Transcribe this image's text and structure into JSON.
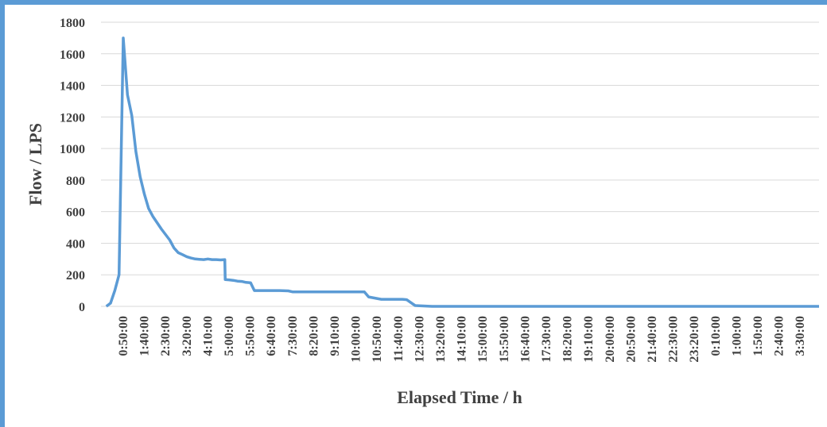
{
  "chart_data": {
    "type": "line",
    "title": "",
    "xlabel": "Elapsed Time / h",
    "ylabel": "Flow / LPS",
    "ylim": [
      0,
      1800
    ],
    "yticks": [
      0,
      200,
      400,
      600,
      800,
      1000,
      1200,
      1400,
      1600,
      1800
    ],
    "grid": "horizontal",
    "legend": "none",
    "color": "#5b9bd5",
    "xticks": [
      "0:50:00",
      "1:40:00",
      "2:30:00",
      "3:20:00",
      "4:10:00",
      "5:00:00",
      "5:50:00",
      "6:40:00",
      "7:30:00",
      "8:20:00",
      "9:10:00",
      "10:00:00",
      "10:50:00",
      "11:40:00",
      "12:30:00",
      "13:20:00",
      "14:10:00",
      "15:00:00",
      "15:50:00",
      "16:40:00",
      "17:30:00",
      "18:20:00",
      "19:10:00",
      "20:00:00",
      "20:50:00",
      "21:40:00",
      "22:30:00",
      "23:20:00",
      "0:10:00",
      "1:00:00",
      "1:50:00",
      "2:40:00",
      "3:30:00"
    ],
    "x_hours": [
      0.167,
      0.333,
      0.5,
      0.667,
      0.833,
      1.0,
      1.167,
      1.333,
      1.5,
      1.667,
      1.833,
      2.0,
      2.167,
      2.333,
      2.5,
      2.667,
      2.833,
      3.0,
      3.167,
      3.333,
      3.5,
      3.667,
      3.833,
      4.0,
      4.167,
      4.333,
      4.5,
      4.667,
      4.833,
      4.85,
      5.0,
      5.167,
      5.333,
      5.5,
      5.667,
      5.833,
      5.85,
      6.0,
      6.5,
      7.0,
      7.333,
      7.5,
      8.0,
      9.0,
      10.0,
      10.333,
      10.5,
      11.0,
      11.5,
      11.667,
      11.833,
      12.0,
      12.333,
      13,
      14,
      15,
      16,
      17,
      18,
      19,
      20,
      21,
      22,
      23,
      24,
      25,
      26,
      27,
      27.5
    ],
    "values": [
      0,
      20,
      100,
      200,
      1700,
      1340,
      1210,
      980,
      820,
      710,
      620,
      570,
      530,
      490,
      455,
      420,
      370,
      340,
      328,
      315,
      306,
      300,
      298,
      296,
      300,
      296,
      296,
      294,
      296,
      170,
      168,
      165,
      160,
      158,
      152,
      150,
      150,
      100,
      100,
      100,
      98,
      92,
      92,
      92,
      92,
      92,
      60,
      45,
      45,
      45,
      45,
      42,
      5,
      0,
      0,
      0,
      0,
      0,
      0,
      0,
      0,
      0,
      0,
      0,
      0,
      0,
      0,
      0,
      0
    ]
  }
}
